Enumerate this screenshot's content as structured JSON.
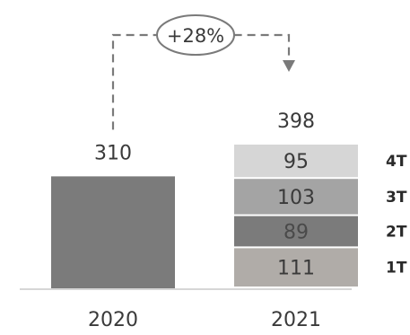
{
  "chart_data": {
    "type": "bar",
    "categories": [
      "2020",
      "2021"
    ],
    "totals": [
      310,
      398
    ],
    "total_labels": [
      "310",
      "398"
    ],
    "growth_label": "+28%",
    "stack_2021": {
      "segments": [
        {
          "name": "1T",
          "value": 111,
          "color": "#b0aca8",
          "text_color": "#3a3a3a"
        },
        {
          "name": "2T",
          "value": 89,
          "color": "#7b7b7b",
          "text_color": "#4a4a4a"
        },
        {
          "name": "3T",
          "value": 103,
          "color": "#a4a4a4",
          "text_color": "#3a3a3a"
        },
        {
          "name": "4T",
          "value": 95,
          "color": "#d6d6d6",
          "text_color": "#3a3a3a"
        }
      ]
    },
    "bar_2020_color": "#7b7b7b",
    "ylim": [
      0,
      398
    ]
  }
}
